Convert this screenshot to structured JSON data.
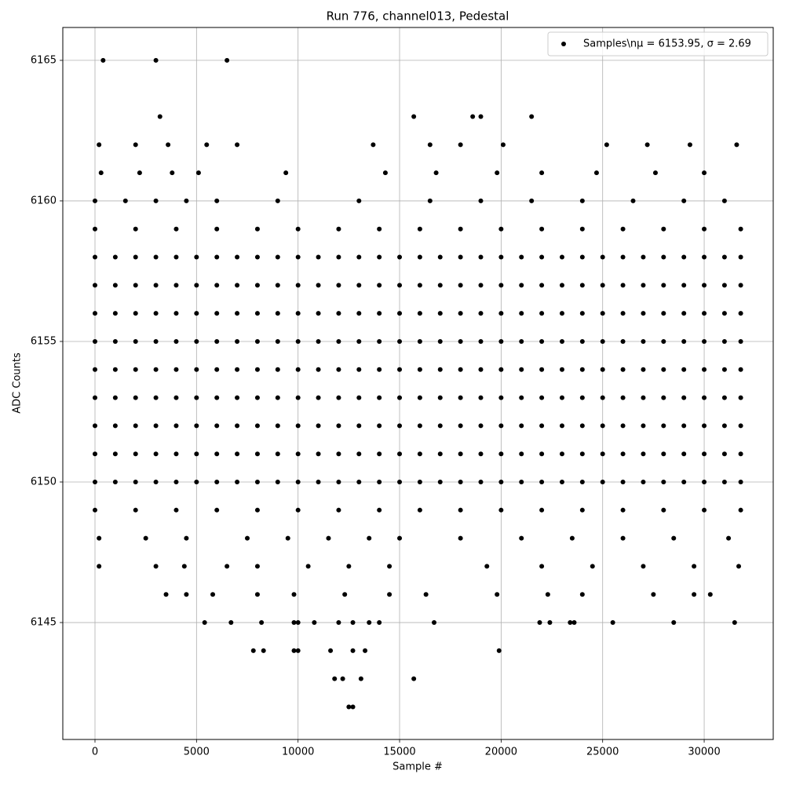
{
  "chart_data": {
    "type": "scatter",
    "title": "Run 776, channel013, Pedestal",
    "xlabel": "Sample #",
    "ylabel": "ADC Counts",
    "x": [
      0,
      1000,
      2000,
      3000,
      4000,
      5000,
      6000,
      7000,
      8000,
      9000,
      10000,
      11000,
      12000,
      13000,
      14000,
      15000,
      16000,
      17000,
      18000,
      19000,
      20000,
      21000,
      22000,
      23000,
      24000,
      25000,
      26000,
      27000,
      28000,
      29000,
      30000,
      31000,
      31800,
      0,
      1000,
      2000,
      3000,
      4000,
      5000,
      6000,
      7000,
      8000,
      9000,
      10000,
      11000,
      12000,
      13000,
      14000,
      15000,
      16000,
      17000,
      18000,
      19000,
      20000,
      21000,
      22000,
      23000,
      24000,
      25000,
      26000,
      27000,
      28000,
      29000,
      30000,
      31000,
      31800,
      0,
      1000,
      2000,
      3000,
      4000,
      5000,
      6000,
      7000,
      8000,
      9000,
      10000,
      11000,
      12000,
      13000,
      14000,
      15000,
      16000,
      17000,
      18000,
      19000,
      20000,
      21000,
      22000,
      23000,
      24000,
      25000,
      26000,
      27000,
      28000,
      29000,
      30000,
      31000,
      31800,
      0,
      1000,
      2000,
      3000,
      4000,
      5000,
      6000,
      7000,
      8000,
      9000,
      10000,
      11000,
      12000,
      13000,
      14000,
      15000,
      16000,
      17000,
      18000,
      19000,
      20000,
      21000,
      22000,
      23000,
      24000,
      25000,
      26000,
      27000,
      28000,
      29000,
      30000,
      31000,
      31800,
      0,
      1000,
      2000,
      3000,
      4000,
      5000,
      6000,
      7000,
      8000,
      9000,
      10000,
      11000,
      12000,
      13000,
      14000,
      15000,
      16000,
      17000,
      18000,
      19000,
      20000,
      21000,
      22000,
      23000,
      24000,
      25000,
      26000,
      27000,
      28000,
      29000,
      30000,
      31000,
      31800,
      0,
      1000,
      2000,
      3000,
      4000,
      5000,
      6000,
      7000,
      8000,
      9000,
      10000,
      11000,
      12000,
      13000,
      14000,
      15000,
      16000,
      17000,
      18000,
      19000,
      20000,
      21000,
      22000,
      23000,
      24000,
      25000,
      26000,
      27000,
      28000,
      29000,
      30000,
      31000,
      31800,
      0,
      1000,
      2000,
      3000,
      4000,
      5000,
      6000,
      7000,
      8000,
      9000,
      10000,
      11000,
      12000,
      13000,
      14000,
      15000,
      16000,
      17000,
      18000,
      19000,
      20000,
      21000,
      22000,
      23000,
      24000,
      25000,
      26000,
      27000,
      28000,
      29000,
      30000,
      31000,
      31800,
      0,
      1000,
      2000,
      3000,
      4000,
      5000,
      6000,
      7000,
      8000,
      9000,
      10000,
      11000,
      12000,
      13000,
      14000,
      15000,
      16000,
      17000,
      18000,
      19000,
      20000,
      21000,
      22000,
      23000,
      24000,
      25000,
      26000,
      27000,
      28000,
      29000,
      30000,
      31000,
      31800,
      0,
      1000,
      2000,
      3000,
      4000,
      5000,
      6000,
      7000,
      8000,
      9000,
      10000,
      11000,
      12000,
      13000,
      14000,
      15000,
      16000,
      17000,
      18000,
      19000,
      20000,
      21000,
      22000,
      23000,
      24000,
      25000,
      26000,
      27000,
      28000,
      29000,
      30000,
      31000,
      31800,
      0,
      2000,
      4000,
      6000,
      8000,
      10000,
      12000,
      14000,
      16000,
      18000,
      20000,
      22000,
      24000,
      26000,
      28000,
      30000,
      31800,
      0,
      2000,
      4000,
      6000,
      8000,
      10000,
      12000,
      14000,
      16000,
      18000,
      20000,
      22000,
      24000,
      26000,
      28000,
      30000,
      31800,
      0,
      1500,
      3000,
      4500,
      6000,
      9000,
      13000,
      16500,
      19000,
      21500,
      24000,
      26500,
      29000,
      31000,
      200,
      2500,
      4500,
      7500,
      9500,
      11500,
      13500,
      15000,
      18000,
      21000,
      23500,
      26000,
      28500,
      31200,
      300,
      2200,
      3800,
      5100,
      9400,
      14300,
      16800,
      19800,
      22000,
      24700,
      27600,
      30000,
      200,
      3000,
      4400,
      6500,
      8000,
      10500,
      12500,
      14500,
      19300,
      22000,
      24500,
      27000,
      29500,
      31700,
      200,
      2000,
      3600,
      5500,
      7000,
      13700,
      16500,
      18000,
      20100,
      25200,
      27200,
      29300,
      31600,
      3500,
      4500,
      5800,
      8000,
      9800,
      12300,
      14500,
      16300,
      19800,
      22300,
      24000,
      27500,
      29500,
      30300,
      400,
      3000,
      6500,
      3200,
      15700,
      18600,
      19000,
      21500,
      5400,
      6700,
      8200,
      9800,
      10000,
      10800,
      12000,
      12700,
      13500,
      14000,
      16700,
      21900,
      22400,
      23400,
      23600,
      25500,
      28500,
      31500,
      7800,
      8300,
      9800,
      10000,
      11600,
      12700,
      13300,
      19900,
      11800,
      12200,
      13100,
      15700,
      12500,
      12700
    ],
    "series": [
      {
        "name": "Samples\\nμ = 6153.95, σ = 2.69",
        "color": "#000000",
        "values": [
          6150,
          6150,
          6150,
          6150,
          6150,
          6150,
          6150,
          6150,
          6150,
          6150,
          6150,
          6150,
          6150,
          6150,
          6150,
          6150,
          6150,
          6150,
          6150,
          6150,
          6150,
          6150,
          6150,
          6150,
          6150,
          6150,
          6150,
          6150,
          6150,
          6150,
          6150,
          6150,
          6150,
          6151,
          6151,
          6151,
          6151,
          6151,
          6151,
          6151,
          6151,
          6151,
          6151,
          6151,
          6151,
          6151,
          6151,
          6151,
          6151,
          6151,
          6151,
          6151,
          6151,
          6151,
          6151,
          6151,
          6151,
          6151,
          6151,
          6151,
          6151,
          6151,
          6151,
          6151,
          6151,
          6151,
          6152,
          6152,
          6152,
          6152,
          6152,
          6152,
          6152,
          6152,
          6152,
          6152,
          6152,
          6152,
          6152,
          6152,
          6152,
          6152,
          6152,
          6152,
          6152,
          6152,
          6152,
          6152,
          6152,
          6152,
          6152,
          6152,
          6152,
          6152,
          6152,
          6152,
          6152,
          6152,
          6152,
          6153,
          6153,
          6153,
          6153,
          6153,
          6153,
          6153,
          6153,
          6153,
          6153,
          6153,
          6153,
          6153,
          6153,
          6153,
          6153,
          6153,
          6153,
          6153,
          6153,
          6153,
          6153,
          6153,
          6153,
          6153,
          6153,
          6153,
          6153,
          6153,
          6153,
          6153,
          6153,
          6153,
          6154,
          6154,
          6154,
          6154,
          6154,
          6154,
          6154,
          6154,
          6154,
          6154,
          6154,
          6154,
          6154,
          6154,
          6154,
          6154,
          6154,
          6154,
          6154,
          6154,
          6154,
          6154,
          6154,
          6154,
          6154,
          6154,
          6154,
          6154,
          6154,
          6154,
          6154,
          6154,
          6154,
          6155,
          6155,
          6155,
          6155,
          6155,
          6155,
          6155,
          6155,
          6155,
          6155,
          6155,
          6155,
          6155,
          6155,
          6155,
          6155,
          6155,
          6155,
          6155,
          6155,
          6155,
          6155,
          6155,
          6155,
          6155,
          6155,
          6155,
          6155,
          6155,
          6155,
          6155,
          6155,
          6155,
          6156,
          6156,
          6156,
          6156,
          6156,
          6156,
          6156,
          6156,
          6156,
          6156,
          6156,
          6156,
          6156,
          6156,
          6156,
          6156,
          6156,
          6156,
          6156,
          6156,
          6156,
          6156,
          6156,
          6156,
          6156,
          6156,
          6156,
          6156,
          6156,
          6156,
          6156,
          6156,
          6156,
          6157,
          6157,
          6157,
          6157,
          6157,
          6157,
          6157,
          6157,
          6157,
          6157,
          6157,
          6157,
          6157,
          6157,
          6157,
          6157,
          6157,
          6157,
          6157,
          6157,
          6157,
          6157,
          6157,
          6157,
          6157,
          6157,
          6157,
          6157,
          6157,
          6157,
          6157,
          6157,
          6157,
          6158,
          6158,
          6158,
          6158,
          6158,
          6158,
          6158,
          6158,
          6158,
          6158,
          6158,
          6158,
          6158,
          6158,
          6158,
          6158,
          6158,
          6158,
          6158,
          6158,
          6158,
          6158,
          6158,
          6158,
          6158,
          6158,
          6158,
          6158,
          6158,
          6158,
          6158,
          6158,
          6158,
          6159,
          6159,
          6159,
          6159,
          6159,
          6159,
          6159,
          6159,
          6159,
          6159,
          6159,
          6159,
          6159,
          6159,
          6159,
          6159,
          6159,
          6149,
          6149,
          6149,
          6149,
          6149,
          6149,
          6149,
          6149,
          6149,
          6149,
          6149,
          6149,
          6149,
          6149,
          6149,
          6149,
          6149,
          6160,
          6160,
          6160,
          6160,
          6160,
          6160,
          6160,
          6160,
          6160,
          6160,
          6160,
          6160,
          6160,
          6160,
          6148,
          6148,
          6148,
          6148,
          6148,
          6148,
          6148,
          6148,
          6148,
          6148,
          6148,
          6148,
          6148,
          6148,
          6161,
          6161,
          6161,
          6161,
          6161,
          6161,
          6161,
          6161,
          6161,
          6161,
          6161,
          6161,
          6147,
          6147,
          6147,
          6147,
          6147,
          6147,
          6147,
          6147,
          6147,
          6147,
          6147,
          6147,
          6147,
          6147,
          6162,
          6162,
          6162,
          6162,
          6162,
          6162,
          6162,
          6162,
          6162,
          6162,
          6162,
          6162,
          6162,
          6146,
          6146,
          6146,
          6146,
          6146,
          6146,
          6146,
          6146,
          6146,
          6146,
          6146,
          6146,
          6146,
          6146,
          6165,
          6165,
          6165,
          6163,
          6163,
          6163,
          6163,
          6163,
          6145,
          6145,
          6145,
          6145,
          6145,
          6145,
          6145,
          6145,
          6145,
          6145,
          6145,
          6145,
          6145,
          6145,
          6145,
          6145,
          6145,
          6145,
          6144,
          6144,
          6144,
          6144,
          6144,
          6144,
          6144,
          6144,
          6143,
          6143,
          6143,
          6143,
          6142,
          6142
        ]
      }
    ],
    "xlim": [
      -1585,
      33400
    ],
    "ylim": [
      6140.84,
      6166.17
    ],
    "xticks": [
      0,
      5000,
      10000,
      15000,
      20000,
      25000,
      30000
    ],
    "yticks": [
      6145,
      6150,
      6155,
      6160,
      6165
    ],
    "grid": true,
    "legend": "upper right"
  }
}
